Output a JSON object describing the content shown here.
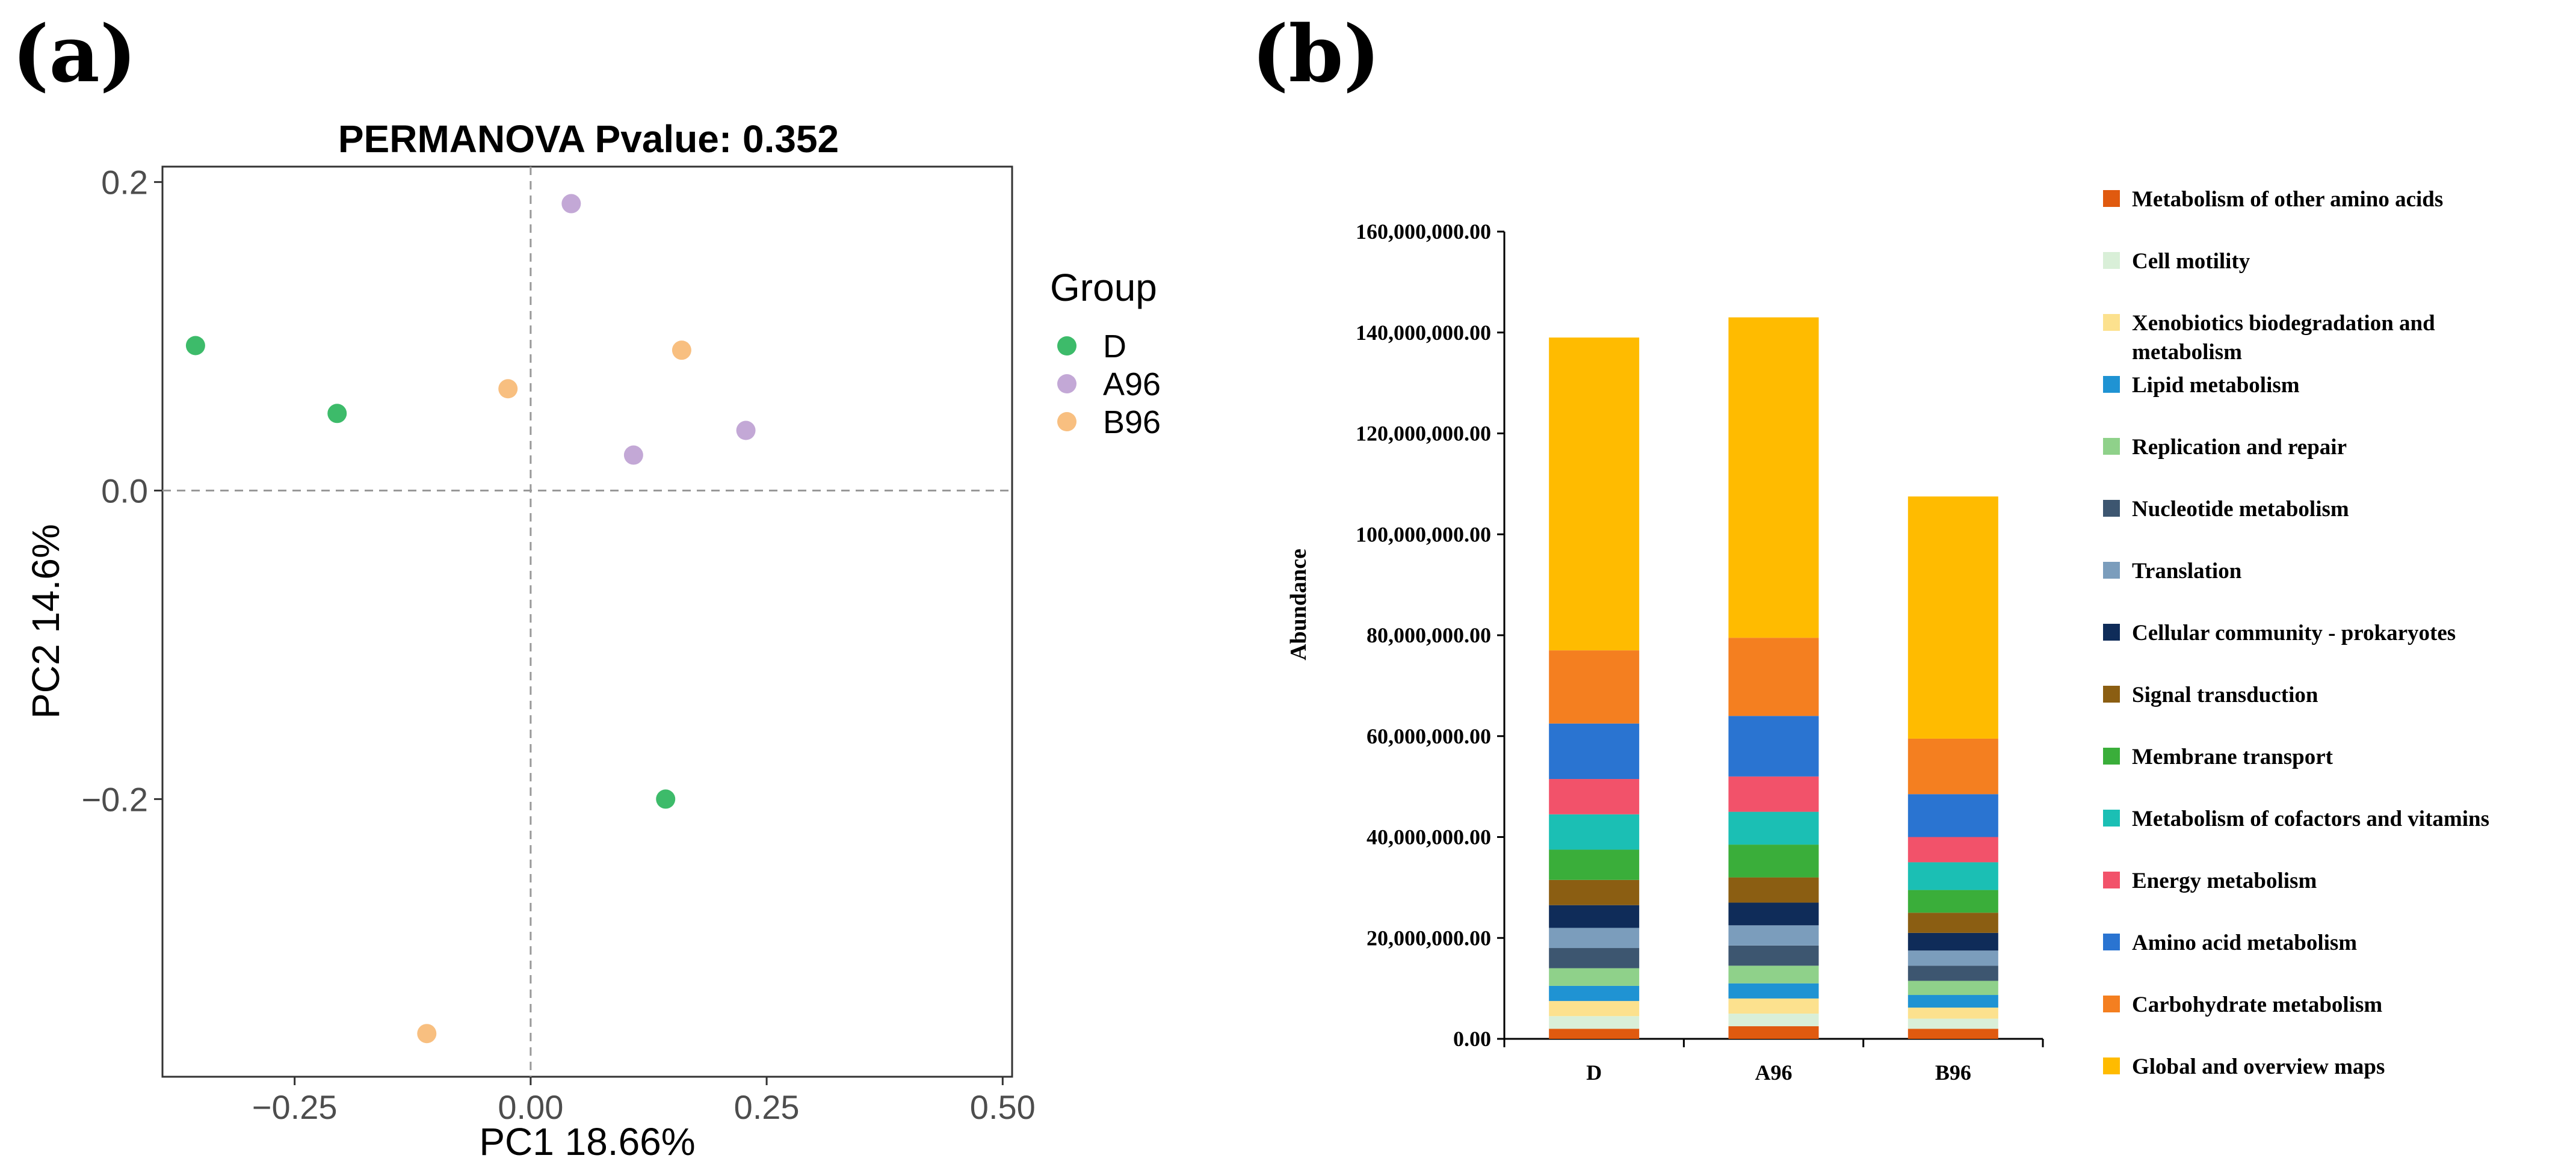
{
  "panels": {
    "a_label": "(a)",
    "b_label": "(b)"
  },
  "chart_data": [
    {
      "type": "scatter",
      "title": "PERMANOVA Pvalue: 0.352",
      "xlabel": "PC1 18.66%",
      "ylabel": "PC2 14.6%",
      "xlim": [
        -0.39,
        0.51
      ],
      "ylim": [
        -0.38,
        0.21
      ],
      "xticks": [
        -0.25,
        0.0,
        0.25,
        0.5
      ],
      "xtick_labels": [
        "−0.25",
        "0.00",
        "0.25",
        "0.50"
      ],
      "yticks": [
        0.2,
        0.0,
        -0.2
      ],
      "ytick_labels": [
        "0.2",
        "0.0",
        "−0.2"
      ],
      "reference_lines": {
        "x": 0.0,
        "y": 0.0
      },
      "legend": {
        "title": "Group",
        "placement": "right"
      },
      "series": [
        {
          "name": "D",
          "color": "#3dbb6a",
          "points": [
            [
              -0.355,
              0.094
            ],
            [
              -0.205,
              0.05
            ],
            [
              0.143,
              -0.2
            ]
          ]
        },
        {
          "name": "A96",
          "color": "#c3a8d6",
          "points": [
            [
              0.043,
              0.186
            ],
            [
              0.228,
              0.039
            ],
            [
              0.109,
              0.023
            ]
          ]
        },
        {
          "name": "B96",
          "color": "#f8bf80",
          "points": [
            [
              0.16,
              0.091
            ],
            [
              -0.024,
              0.066
            ],
            [
              -0.11,
              -0.352
            ]
          ]
        }
      ]
    },
    {
      "type": "bar",
      "stacked": true,
      "ylabel": "Abundance",
      "xlabel": "",
      "ylim": [
        0,
        160000000
      ],
      "yticks": [
        0,
        20000000,
        40000000,
        60000000,
        80000000,
        100000000,
        120000000,
        140000000,
        160000000
      ],
      "ytick_labels": [
        "0.00",
        "20,000,000.00",
        "40,000,000.00",
        "60,000,000.00",
        "80,000,000.00",
        "100,000,000.00",
        "120,000,000.00",
        "140,000,000.00",
        "160,000,000.00"
      ],
      "categories": [
        "D",
        "A96",
        "B96"
      ],
      "legend": {
        "placement": "right"
      },
      "series": [
        {
          "name": "Global and overview maps",
          "color": "#ffbb00",
          "values": [
            62000000,
            63500000,
            48000000
          ]
        },
        {
          "name": "Carbohydrate metabolism",
          "color": "#f47f20",
          "values": [
            14500000,
            15500000,
            11000000
          ]
        },
        {
          "name": "Amino acid metabolism",
          "color": "#2a74d1",
          "values": [
            11000000,
            12000000,
            8500000
          ]
        },
        {
          "name": "Energy metabolism",
          "color": "#f2526a",
          "values": [
            7000000,
            7000000,
            5000000
          ]
        },
        {
          "name": "Metabolism of cofactors and vitamins",
          "color": "#1bbfb4",
          "values": [
            7000000,
            6500000,
            5500000
          ]
        },
        {
          "name": "Membrane transport",
          "color": "#3aae3a",
          "values": [
            6000000,
            6500000,
            4500000
          ]
        },
        {
          "name": "Signal transduction",
          "color": "#8b5e12",
          "values": [
            5000000,
            5000000,
            4000000
          ]
        },
        {
          "name": "Cellular community - prokaryotes",
          "color": "#0f2c59",
          "values": [
            4500000,
            4500000,
            3500000
          ]
        },
        {
          "name": "Translation",
          "color": "#7b9dbc",
          "values": [
            4000000,
            4000000,
            3000000
          ]
        },
        {
          "name": "Nucleotide metabolism",
          "color": "#3d5670",
          "values": [
            4000000,
            4000000,
            3000000
          ]
        },
        {
          "name": "Replication and repair",
          "color": "#8fd18a",
          "values": [
            3500000,
            3500000,
            2800000
          ]
        },
        {
          "name": "Lipid metabolism",
          "color": "#1f93d3",
          "values": [
            3000000,
            3000000,
            2500000
          ]
        },
        {
          "name": "Xenobiotics biodegradation and metabolism",
          "color": "#fce18e",
          "values": [
            3000000,
            3000000,
            2200000
          ]
        },
        {
          "name": "Cell motility",
          "color": "#d9efd8",
          "values": [
            2500000,
            2500000,
            2000000
          ]
        },
        {
          "name": "Metabolism of other amino acids",
          "color": "#e05a0f",
          "values": [
            2000000,
            2500000,
            2000000
          ]
        }
      ]
    }
  ]
}
